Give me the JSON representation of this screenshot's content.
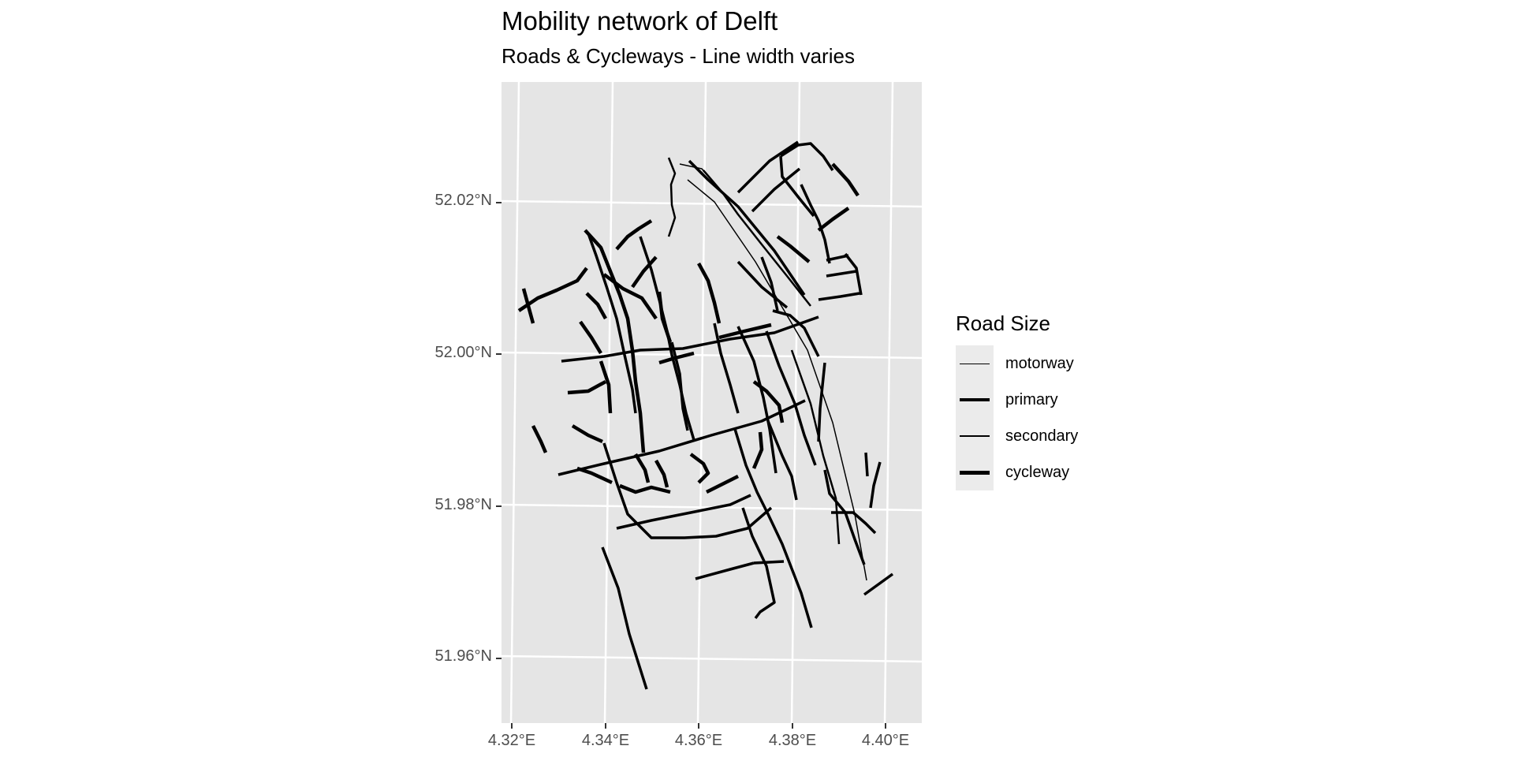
{
  "title": "Mobility network of Delft",
  "subtitle": "Roads & Cycleways - Line width varies",
  "map": {
    "y_ticks": [
      "52.02°N",
      "52.00°N",
      "51.98°N",
      "51.96°N"
    ],
    "x_ticks": [
      "4.32°E",
      "4.34°E",
      "4.36°E",
      "4.38°E",
      "4.40°E"
    ]
  },
  "legend": {
    "title": "Road Size",
    "items": [
      {
        "label": "motorway",
        "weight": 1
      },
      {
        "label": "primary",
        "weight": 3
      },
      {
        "label": "secondary",
        "weight": 2
      },
      {
        "label": "cycleway",
        "weight": 4
      }
    ]
  }
}
